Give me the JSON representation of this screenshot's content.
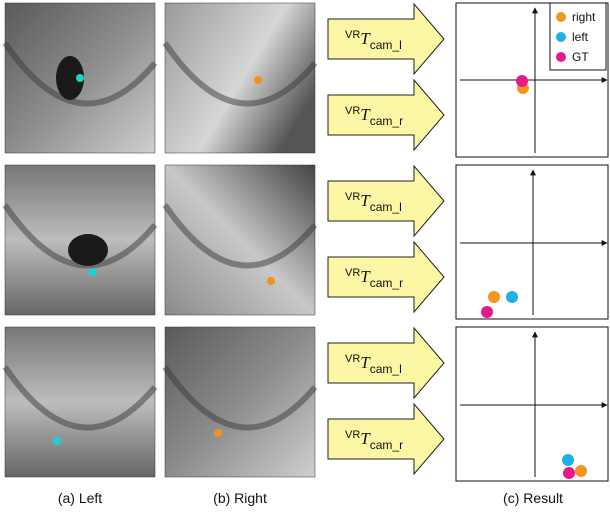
{
  "rows": [
    {
      "arrow_labels": [
        {
          "superscript": "VR",
          "symbol": "T",
          "subscript": "cam_l"
        },
        {
          "superscript": "VR",
          "symbol": "T",
          "subscript": "cam_r"
        }
      ]
    },
    {
      "arrow_labels": [
        {
          "superscript": "VR",
          "symbol": "T",
          "subscript": "cam_l"
        },
        {
          "superscript": "VR",
          "symbol": "T",
          "subscript": "cam_r"
        }
      ]
    },
    {
      "arrow_labels": [
        {
          "superscript": "VR",
          "symbol": "T",
          "subscript": "cam_l"
        },
        {
          "superscript": "VR",
          "symbol": "T",
          "subscript": "cam_r"
        }
      ]
    }
  ],
  "legend": [
    "right",
    "left",
    "GT"
  ],
  "captions": [
    "(a) Left",
    "(b) Right",
    "(c) Result"
  ]
}
